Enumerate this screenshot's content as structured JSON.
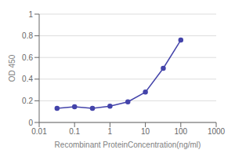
{
  "chart_data": {
    "type": "line",
    "x": [
      0.032,
      0.1,
      0.32,
      1.0,
      3.2,
      10.0,
      32.0,
      100.0
    ],
    "values": [
      0.13,
      0.145,
      0.13,
      0.15,
      0.19,
      0.28,
      0.5,
      0.76
    ],
    "color": "#4444aa",
    "marker": "circle",
    "xlabel": "Recombinant ProteinConcentration(ng/ml)",
    "ylabel": "OD 450",
    "xlim": [
      0.01,
      1000
    ],
    "ylim": [
      0,
      1.0
    ],
    "xticks": [
      0.01,
      0.1,
      1,
      10,
      100,
      1000
    ],
    "yticks": [
      0,
      0.2,
      0.4,
      0.6,
      0.8,
      1.0
    ],
    "log": "x",
    "grid": "y"
  }
}
